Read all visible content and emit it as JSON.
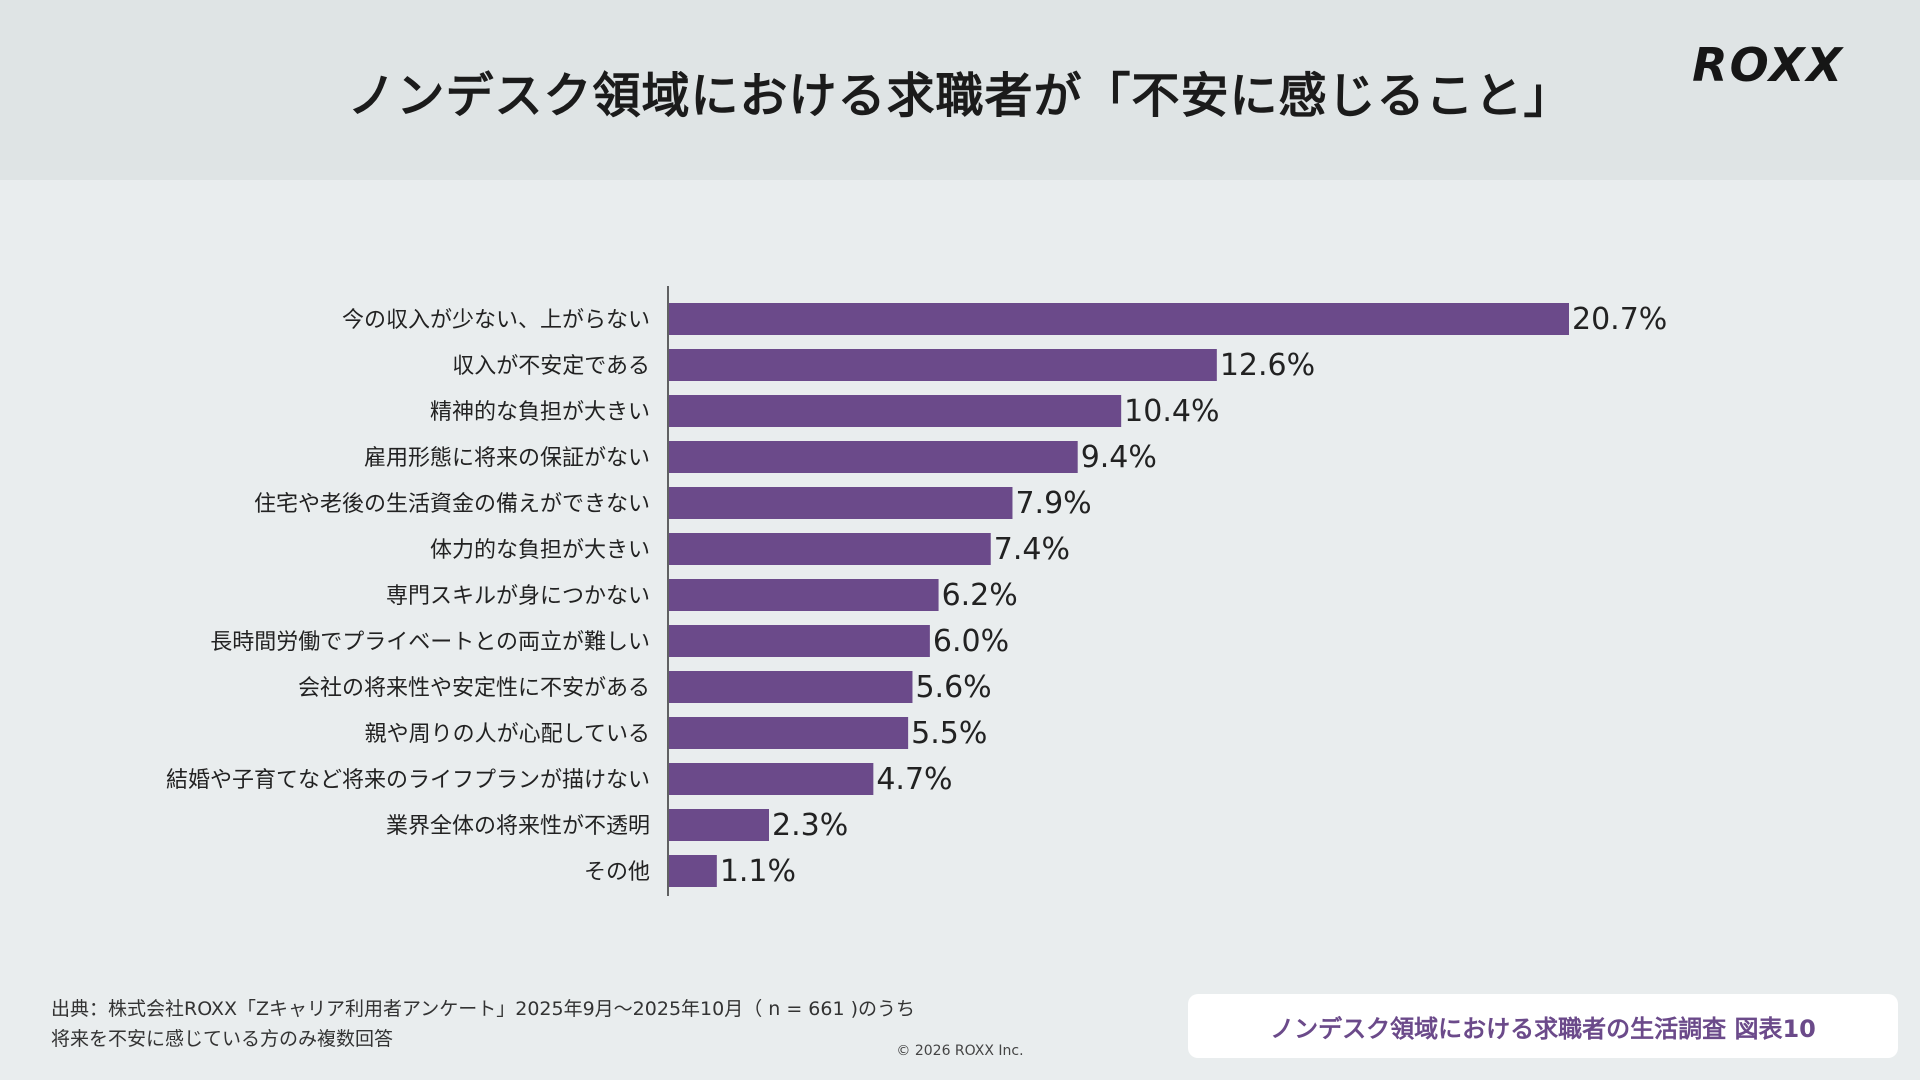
{
  "header": {
    "title": "ノンデスク領域における求職者が「不安に感じること」",
    "logo": "ROXX"
  },
  "chart_data": {
    "type": "bar",
    "orientation": "horizontal",
    "categories": [
      "今の収入が少ない、上がらない",
      "収入が不安定である",
      "精神的な負担が大きい",
      "雇用形態に将来の保証がない",
      "住宅や老後の生活資金の備えができない",
      "体力的な負担が大きい",
      "専門スキルが身につかない",
      "長時間労働でプライベートとの両立が難しい",
      "会社の将来性や安定性に不安がある",
      "親や周りの人が心配している",
      "結婚や子育てなど将来のライフプランが描けない",
      "業界全体の将来性が不透明",
      "その他"
    ],
    "values": [
      20.7,
      12.6,
      10.4,
      9.4,
      7.9,
      7.4,
      6.2,
      6.0,
      5.6,
      5.5,
      4.7,
      2.3,
      1.1
    ],
    "value_labels": [
      "20.7%",
      "12.6%",
      "10.4%",
      "9.4%",
      "7.9%",
      "7.4%",
      "6.2%",
      "6.0%",
      "5.6%",
      "5.5%",
      "4.7%",
      "2.3%",
      "1.1%"
    ],
    "bar_color": "#6b4a8a",
    "xlim": [
      0,
      20.7
    ],
    "grid": false
  },
  "footer": {
    "source_line1": "出典：株式会社ROXX「Zキャリア利用者アンケート」2025年9月〜2025年10月（ n = 661 )のうち",
    "source_line2": "将来を不安に感じている方のみ複数回答",
    "copyright": "© 2026 ROXX Inc.",
    "caption": "ノンデスク領域における求職者の生活調査 図表10"
  }
}
